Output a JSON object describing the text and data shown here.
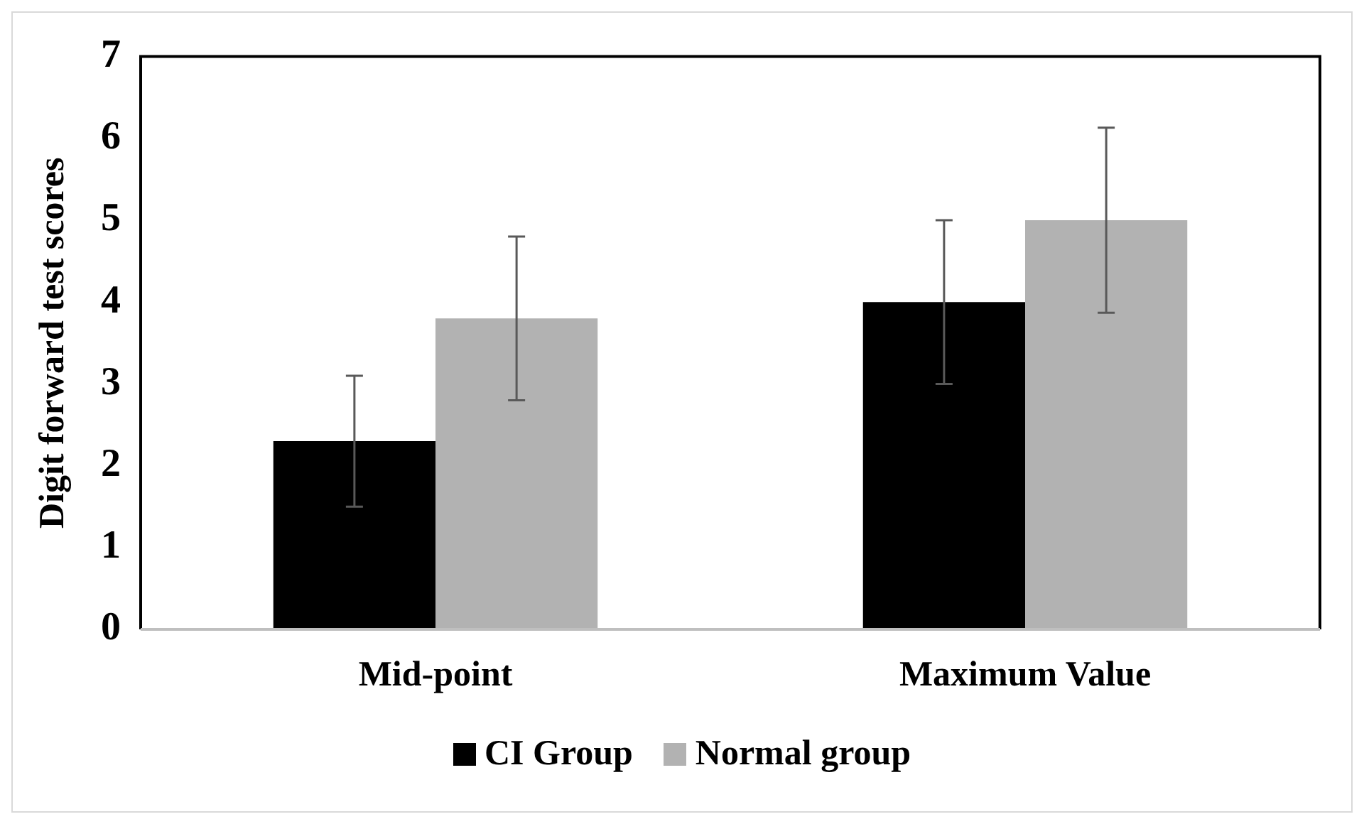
{
  "chart_data": {
    "type": "bar",
    "ylabel": "Digit forward test scores",
    "categories": [
      "Mid-point",
      "Maximum Value"
    ],
    "series": [
      {
        "name": "CI Group",
        "color": "#000000",
        "values": [
          2.3,
          4.0
        ],
        "errors": [
          0.8,
          1.0
        ]
      },
      {
        "name": "Normal group",
        "color": "#b2b2b2",
        "values": [
          3.8,
          5.0
        ],
        "errors": [
          1.0,
          1.13
        ]
      }
    ],
    "ylim": [
      0,
      7
    ],
    "yticks": [
      0,
      1,
      2,
      3,
      4,
      5,
      6,
      7
    ],
    "grid": false,
    "legend": "bottom"
  }
}
